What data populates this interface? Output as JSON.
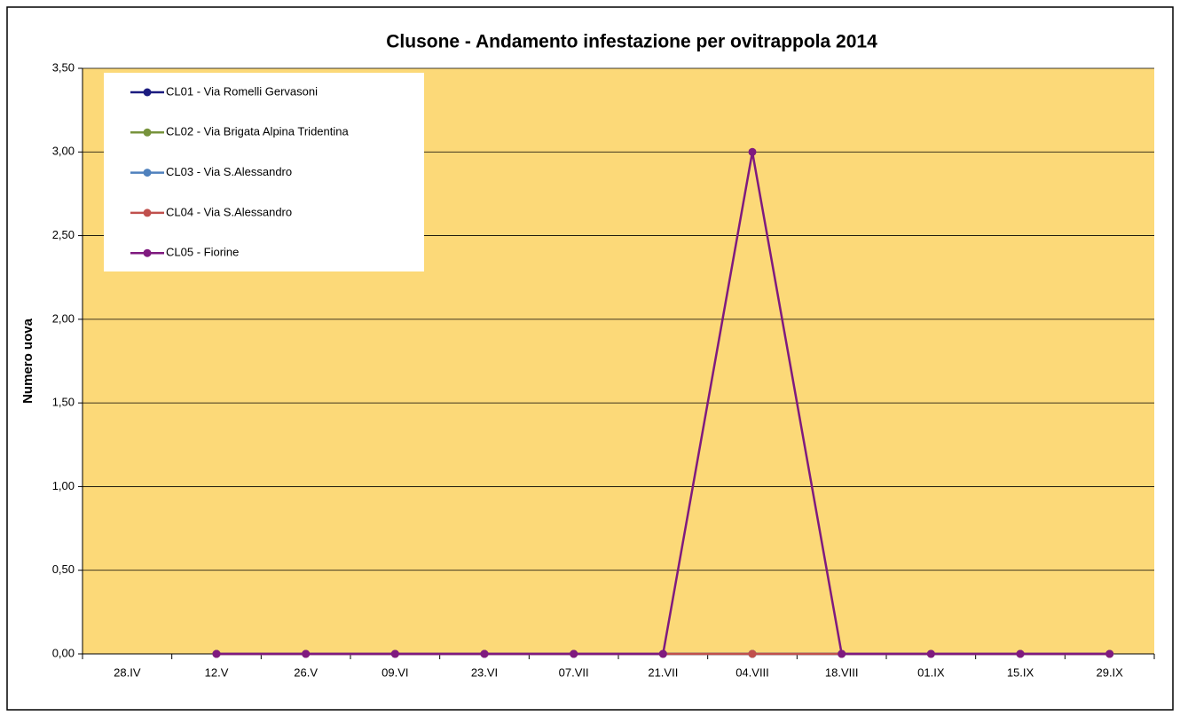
{
  "chart_data": {
    "type": "line",
    "title": "Clusone - Andamento infestazione per ovitrappola 2014",
    "ylabel": "Numero uova",
    "categories": [
      "28.IV",
      "12.V",
      "26.V",
      "09.VI",
      "23.VI",
      "07.VII",
      "21.VII",
      "04.VIII",
      "18.VIII",
      "01.IX",
      "15.IX",
      "29.IX"
    ],
    "series": [
      {
        "name": "CL01 - Via Romelli Gervasoni",
        "color": "#1c1c80",
        "values": [
          null,
          0,
          0,
          0,
          0,
          0,
          0,
          0,
          0,
          0,
          0,
          0
        ]
      },
      {
        "name": "CL02 - Via Brigata Alpina Tridentina",
        "color": "#77933c",
        "values": [
          null,
          0,
          0,
          0,
          0,
          0,
          0,
          0,
          0,
          0,
          0,
          0
        ]
      },
      {
        "name": "CL03 - Via S.Alessandro",
        "color": "#4f81bd",
        "values": [
          null,
          0,
          0,
          0,
          0,
          0,
          0,
          0,
          0,
          0,
          0,
          0
        ]
      },
      {
        "name": "CL04 - Via S.Alessandro",
        "color": "#c0504d",
        "values": [
          null,
          0,
          0,
          0,
          0,
          0,
          0,
          0,
          0,
          0,
          0,
          0
        ]
      },
      {
        "name": "CL05 - Fiorine",
        "color": "#7f1a7f",
        "values": [
          null,
          0,
          0,
          0,
          0,
          0,
          0,
          3,
          0,
          0,
          0,
          0
        ]
      }
    ],
    "ylim": [
      0,
      3.5
    ],
    "yticks": [
      {
        "value": 0,
        "label": "0,00"
      },
      {
        "value": 0.5,
        "label": "0,50"
      },
      {
        "value": 1,
        "label": "1,00"
      },
      {
        "value": 1.5,
        "label": "1,50"
      },
      {
        "value": 2,
        "label": "2,00"
      },
      {
        "value": 2.5,
        "label": "2,50"
      },
      {
        "value": 3,
        "label": "3,00"
      },
      {
        "value": 3.5,
        "label": "3,50"
      }
    ],
    "grid": true,
    "legend": "upper left",
    "background": "#fcd978"
  }
}
